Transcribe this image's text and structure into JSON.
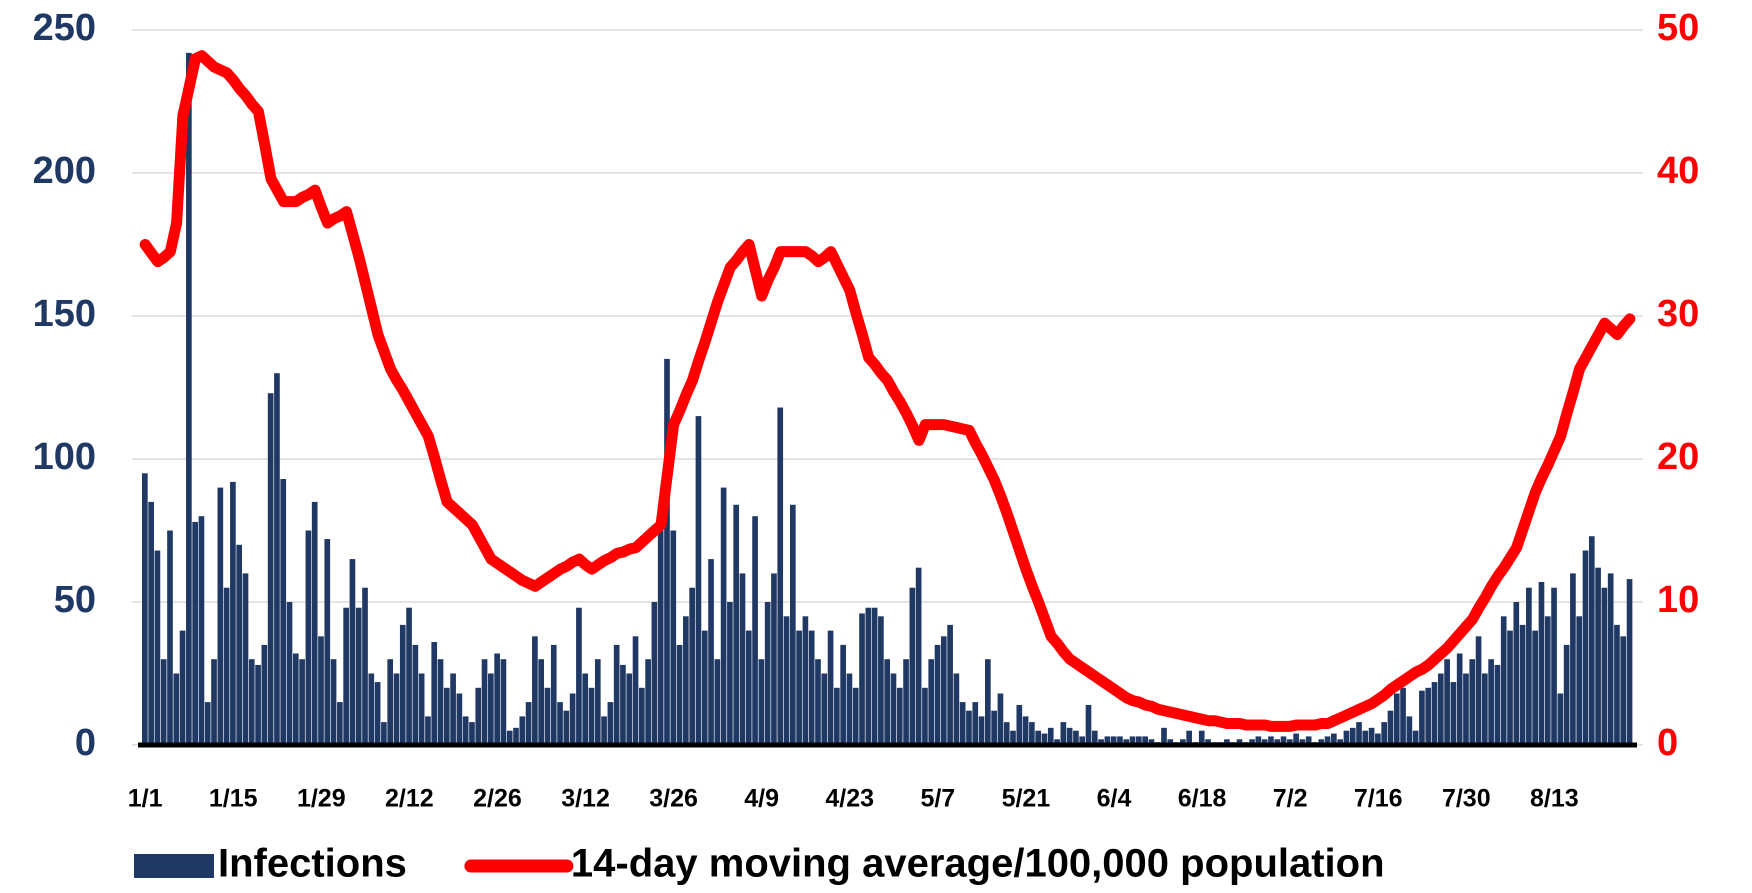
{
  "chart_data": {
    "type": "bar",
    "categories": [
      "1/1",
      null,
      null,
      null,
      null,
      null,
      null,
      null,
      null,
      null,
      null,
      null,
      null,
      null,
      "1/15",
      null,
      null,
      null,
      null,
      null,
      null,
      null,
      null,
      null,
      null,
      null,
      null,
      null,
      "1/29",
      null,
      null,
      null,
      null,
      null,
      null,
      null,
      null,
      null,
      null,
      null,
      null,
      null,
      "2/12",
      null,
      null,
      null,
      null,
      null,
      null,
      null,
      null,
      null,
      null,
      null,
      null,
      null,
      "2/26",
      null,
      null,
      null,
      null,
      null,
      null,
      null,
      null,
      null,
      null,
      null,
      null,
      null,
      "3/12",
      null,
      null,
      null,
      null,
      null,
      null,
      null,
      null,
      null,
      null,
      null,
      null,
      null,
      "3/26",
      null,
      null,
      null,
      null,
      null,
      null,
      null,
      null,
      null,
      null,
      null,
      null,
      null,
      "4/9",
      null,
      null,
      null,
      null,
      null,
      null,
      null,
      null,
      null,
      null,
      null,
      null,
      null,
      "4/23",
      null,
      null,
      null,
      null,
      null,
      null,
      null,
      null,
      null,
      null,
      null,
      null,
      null,
      "5/7",
      null,
      null,
      null,
      null,
      null,
      null,
      null,
      null,
      null,
      null,
      null,
      null,
      null,
      "5/21",
      null,
      null,
      null,
      null,
      null,
      null,
      null,
      null,
      null,
      null,
      null,
      null,
      null,
      "6/4",
      null,
      null,
      null,
      null,
      null,
      null,
      null,
      null,
      null,
      null,
      null,
      null,
      null,
      "6/18",
      null,
      null,
      null,
      null,
      null,
      null,
      null,
      null,
      null,
      null,
      null,
      null,
      null,
      "7/2",
      null,
      null,
      null,
      null,
      null,
      null,
      null,
      null,
      null,
      null,
      null,
      null,
      null,
      "7/16",
      null,
      null,
      null,
      null,
      null,
      null,
      null,
      null,
      null,
      null,
      null,
      null,
      null,
      "7/30",
      null,
      null,
      null,
      null,
      null,
      null,
      null,
      null,
      null,
      null,
      null,
      null,
      null,
      "8/13",
      null,
      null,
      null,
      null,
      null,
      null,
      null,
      null,
      null,
      null,
      null,
      null
    ],
    "series": [
      {
        "name": "Infections",
        "type": "bar",
        "color": "#1f3864",
        "values": [
          95,
          85,
          68,
          30,
          75,
          25,
          40,
          242,
          78,
          80,
          15,
          30,
          90,
          55,
          92,
          70,
          60,
          30,
          28,
          35,
          123,
          130,
          93,
          50,
          32,
          30,
          75,
          85,
          38,
          72,
          30,
          15,
          48,
          65,
          48,
          55,
          25,
          22,
          8,
          30,
          25,
          42,
          48,
          35,
          25,
          10,
          36,
          30,
          20,
          25,
          18,
          10,
          8,
          20,
          30,
          25,
          32,
          30,
          5,
          6,
          10,
          15,
          38,
          30,
          20,
          35,
          15,
          12,
          18,
          48,
          25,
          20,
          30,
          10,
          15,
          35,
          28,
          25,
          38,
          20,
          30,
          50,
          75,
          135,
          75,
          35,
          45,
          55,
          115,
          40,
          65,
          30,
          90,
          50,
          84,
          60,
          40,
          80,
          30,
          50,
          60,
          118,
          45,
          84,
          40,
          45,
          40,
          30,
          25,
          40,
          20,
          35,
          25,
          20,
          46,
          48,
          48,
          45,
          30,
          25,
          20,
          30,
          55,
          62,
          20,
          30,
          35,
          38,
          42,
          25,
          15,
          12,
          15,
          10,
          30,
          12,
          18,
          8,
          5,
          14,
          10,
          8,
          5,
          4,
          6,
          2,
          8,
          6,
          5,
          3,
          14,
          5,
          2,
          3,
          3,
          3,
          2,
          3,
          3,
          3,
          2,
          1,
          6,
          2,
          1,
          2,
          5,
          1,
          5,
          2,
          1,
          1,
          2,
          1,
          2,
          1,
          2,
          3,
          2,
          3,
          2,
          3,
          2,
          4,
          2,
          3,
          1,
          2,
          3,
          4,
          2,
          5,
          6,
          8,
          5,
          6,
          4,
          8,
          12,
          18,
          20,
          10,
          5,
          19,
          20,
          22,
          25,
          30,
          22,
          32,
          25,
          30,
          38,
          25,
          30,
          28,
          45,
          40,
          50,
          42,
          55,
          40,
          57,
          45,
          55,
          18,
          35,
          60,
          45,
          68,
          73,
          62,
          55,
          60,
          42,
          38,
          58
        ]
      },
      {
        "name": "14-day moving average/100,000 population",
        "type": "line",
        "axis": "y2",
        "color": "#ff0000",
        "values": [
          35.0,
          34.4,
          33.8,
          34.1,
          34.5,
          36.5,
          44.0,
          46.0,
          48.0,
          48.2,
          47.8,
          47.4,
          47.2,
          47.0,
          46.5,
          45.9,
          45.4,
          44.8,
          44.3,
          42.0,
          39.6,
          38.8,
          38.0,
          38.0,
          38.0,
          38.3,
          38.5,
          38.8,
          37.6,
          36.5,
          36.8,
          37.0,
          37.3,
          35.7,
          34.1,
          32.3,
          30.5,
          28.7,
          27.5,
          26.3,
          25.5,
          24.8,
          24.0,
          23.2,
          22.4,
          21.6,
          20.1,
          18.5,
          17.0,
          16.6,
          16.2,
          15.8,
          15.4,
          14.6,
          13.8,
          13.0,
          12.7,
          12.4,
          12.1,
          11.8,
          11.5,
          11.3,
          11.1,
          11.4,
          11.7,
          12.0,
          12.3,
          12.5,
          12.8,
          13.0,
          12.6,
          12.3,
          12.6,
          12.9,
          13.1,
          13.4,
          13.5,
          13.7,
          13.8,
          14.2,
          14.6,
          15.0,
          15.4,
          18.9,
          22.4,
          23.4,
          24.5,
          25.5,
          26.9,
          28.2,
          29.6,
          31.0,
          32.2,
          33.4,
          33.9,
          34.5,
          35.0,
          33.2,
          31.4,
          32.5,
          33.4,
          34.5,
          34.5,
          34.5,
          34.5,
          34.5,
          34.2,
          33.8,
          34.1,
          34.5,
          33.6,
          32.7,
          31.8,
          30.2,
          28.7,
          27.1,
          26.6,
          26.0,
          25.5,
          24.7,
          24.0,
          23.2,
          22.3,
          21.3,
          22.4,
          22.4,
          22.4,
          22.4,
          22.3,
          22.2,
          22.1,
          22.0,
          21.1,
          20.3,
          19.4,
          18.5,
          17.4,
          16.2,
          14.9,
          13.6,
          12.3,
          11.1,
          10.0,
          8.8,
          7.6,
          7.1,
          6.5,
          6.0,
          5.7,
          5.4,
          5.1,
          4.8,
          4.5,
          4.2,
          3.9,
          3.6,
          3.3,
          3.1,
          3.0,
          2.8,
          2.7,
          2.5,
          2.4,
          2.3,
          2.2,
          2.1,
          2.0,
          1.9,
          1.8,
          1.7,
          1.7,
          1.6,
          1.5,
          1.5,
          1.5,
          1.4,
          1.4,
          1.4,
          1.4,
          1.3,
          1.3,
          1.3,
          1.3,
          1.4,
          1.4,
          1.4,
          1.4,
          1.5,
          1.5,
          1.7,
          1.9,
          2.1,
          2.3,
          2.5,
          2.7,
          2.9,
          3.2,
          3.5,
          3.9,
          4.2,
          4.5,
          4.8,
          5.1,
          5.3,
          5.6,
          6.0,
          6.4,
          6.8,
          7.3,
          7.8,
          8.3,
          8.8,
          9.6,
          10.3,
          11.1,
          11.8,
          12.4,
          13.1,
          13.8,
          15.1,
          16.4,
          17.7,
          18.7,
          19.6,
          20.6,
          21.6,
          23.2,
          24.7,
          26.3,
          27.1,
          27.9,
          28.7,
          29.5,
          29.1,
          28.7,
          29.3,
          29.8
        ]
      }
    ],
    "ylim": [
      0,
      250
    ],
    "yticks": [
      0,
      50,
      100,
      150,
      200,
      250
    ],
    "y2lim": [
      0,
      50
    ],
    "y2ticks": [
      0,
      10,
      20,
      30,
      40,
      50
    ],
    "grid": true,
    "legend": "bottom"
  }
}
